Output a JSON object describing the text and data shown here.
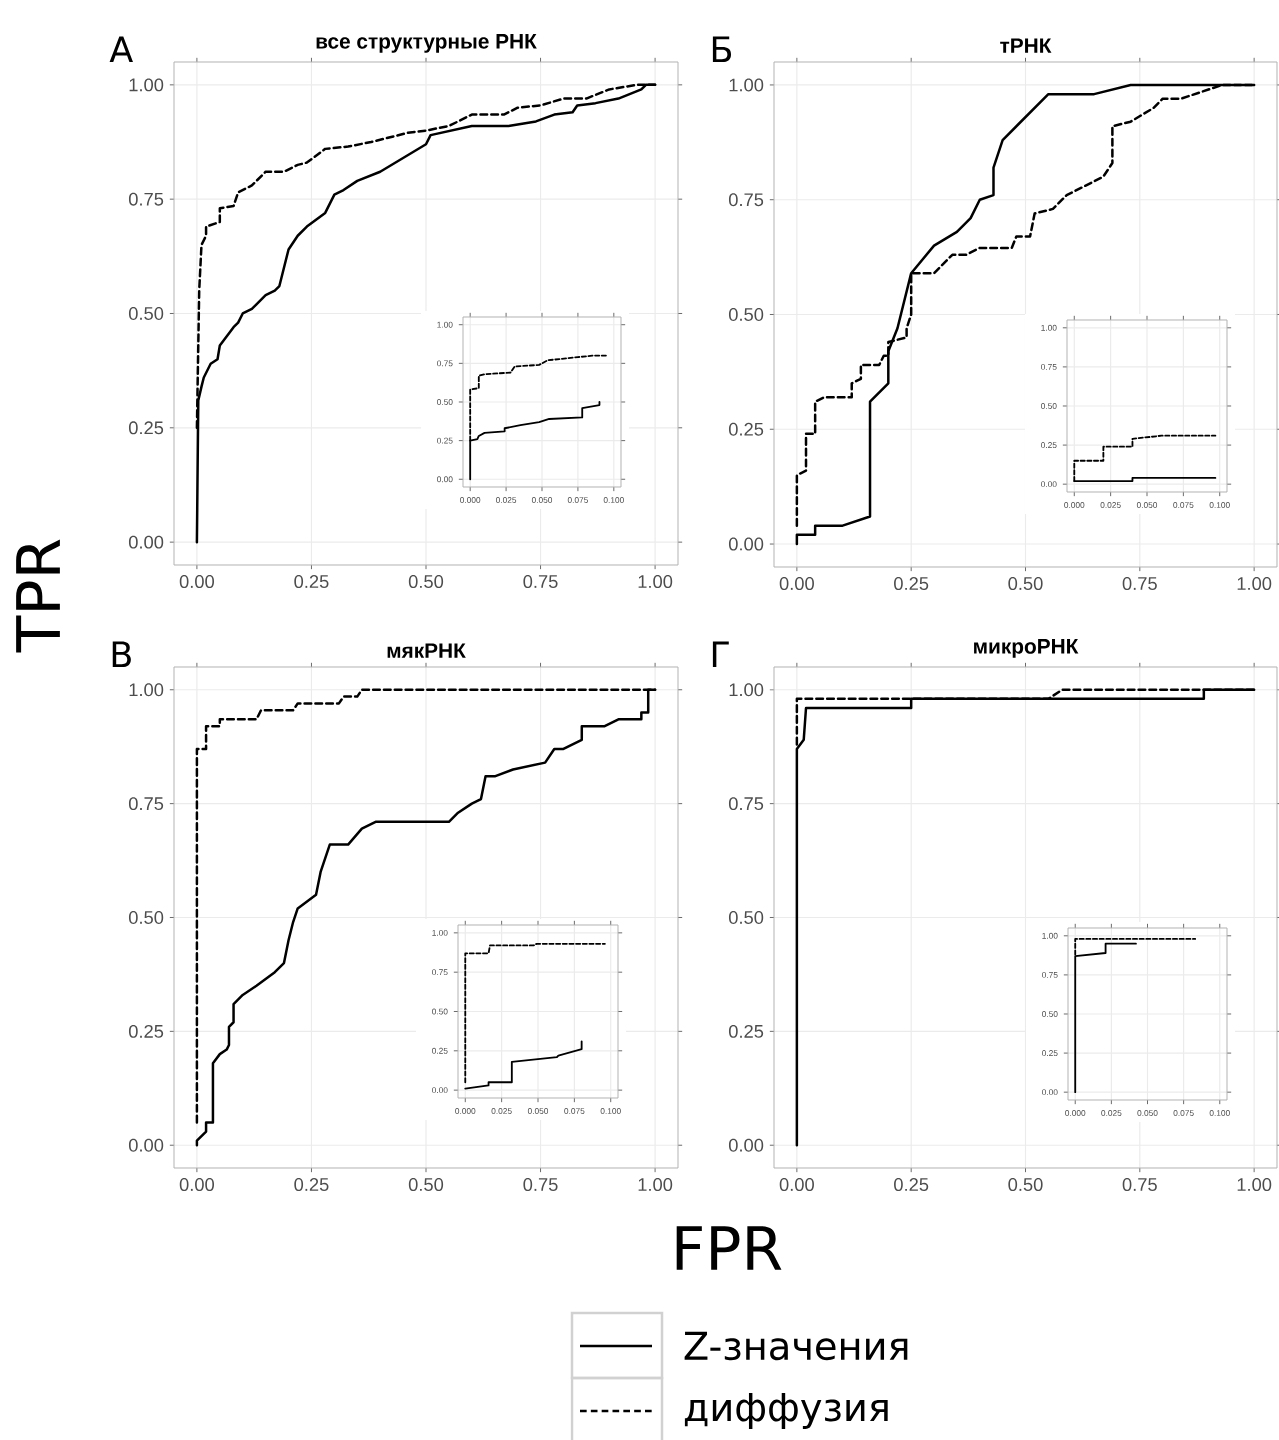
{
  "chart_data": [
    {
      "type": "line",
      "title": "все структурные РНК",
      "xlabel": "FPR",
      "ylabel": "TPR",
      "annotations": [
        "А"
      ],
      "legend": "bottom",
      "grid": true,
      "marker": "none",
      "xlim": [
        -0.05,
        1.05
      ],
      "ylim": [
        -0.05,
        1.05
      ],
      "xticks": [
        {
          "value": 0,
          "label": "0.00"
        },
        {
          "value": 0.25,
          "label": "0.25"
        },
        {
          "value": 0.5,
          "label": "0.50"
        },
        {
          "value": 0.75,
          "label": "0.75"
        },
        {
          "value": 1,
          "label": "1.00"
        }
      ],
      "yticks": [
        {
          "value": 0,
          "label": "0.00"
        },
        {
          "value": 0.25,
          "label": "0.25"
        },
        {
          "value": 0.5,
          "label": "0.50"
        },
        {
          "value": 0.75,
          "label": "0.75"
        },
        {
          "value": 1,
          "label": "1.00"
        }
      ],
      "series": [
        {
          "name": "Z-значения",
          "color": "#000000",
          "line_style": "solid",
          "x": [
            0,
            0.003,
            0.01,
            0.015,
            0.03,
            0.045,
            0.05,
            0.08,
            0.09,
            0.1,
            0.12,
            0.13,
            0.15,
            0.17,
            0.18,
            0.2,
            0.22,
            0.24,
            0.28,
            0.3,
            0.32,
            0.35,
            0.4,
            0.45,
            0.5,
            0.51,
            0.6,
            0.68,
            0.74,
            0.78,
            0.82,
            0.83,
            0.87,
            0.92,
            0.97,
            0.98,
            1
          ],
          "values": [
            0,
            0.31,
            0.34,
            0.36,
            0.39,
            0.4,
            0.43,
            0.47,
            0.48,
            0.5,
            0.51,
            0.52,
            0.54,
            0.55,
            0.56,
            0.64,
            0.67,
            0.69,
            0.72,
            0.76,
            0.77,
            0.79,
            0.81,
            0.84,
            0.87,
            0.89,
            0.91,
            0.91,
            0.92,
            0.935,
            0.94,
            0.955,
            0.96,
            0.97,
            0.99,
            1,
            1
          ]
        },
        {
          "name": "диффузия",
          "color": "#000000",
          "line_style": "dashed",
          "x": [
            0,
            0.005,
            0.01,
            0.02,
            0.02,
            0.05,
            0.05,
            0.08,
            0.09,
            0.12,
            0.15,
            0.19,
            0.22,
            0.24,
            0.28,
            0.33,
            0.38,
            0.4,
            0.46,
            0.5,
            0.55,
            0.6,
            0.67,
            0.7,
            0.75,
            0.8,
            0.85,
            0.9,
            0.96,
            1
          ],
          "values": [
            0.25,
            0.55,
            0.65,
            0.67,
            0.69,
            0.7,
            0.73,
            0.735,
            0.765,
            0.78,
            0.81,
            0.81,
            0.825,
            0.83,
            0.86,
            0.865,
            0.875,
            0.88,
            0.895,
            0.9,
            0.91,
            0.935,
            0.935,
            0.95,
            0.955,
            0.97,
            0.97,
            0.99,
            1,
            1
          ]
        }
      ]
    },
    {
      "type": "line",
      "grid": true,
      "marker": "none",
      "xlim": [
        -0.005,
        0.105
      ],
      "ylim": [
        -0.05,
        1.05
      ],
      "xticks": [
        {
          "value": 0,
          "label": "0.000"
        },
        {
          "value": 0.025,
          "label": "0.025"
        },
        {
          "value": 0.05,
          "label": "0.050"
        },
        {
          "value": 0.075,
          "label": "0.075"
        },
        {
          "value": 0.1,
          "label": "0.100"
        }
      ],
      "yticks": [
        {
          "value": 0,
          "label": "0.00"
        },
        {
          "value": 0.25,
          "label": "0.25"
        },
        {
          "value": 0.5,
          "label": "0.50"
        },
        {
          "value": 0.75,
          "label": "0.75"
        },
        {
          "value": 1,
          "label": "1.00"
        }
      ],
      "series": [
        {
          "color": "#000000",
          "line_style": "solid",
          "x": [
            0,
            0,
            0.005,
            0.006,
            0.01,
            0.024,
            0.024,
            0.035,
            0.048,
            0.055,
            0.078,
            0.078,
            0.09,
            0.09
          ],
          "values": [
            0,
            0.25,
            0.26,
            0.28,
            0.3,
            0.31,
            0.33,
            0.35,
            0.37,
            0.39,
            0.4,
            0.46,
            0.48,
            0.5
          ]
        },
        {
          "color": "#000000",
          "line_style": "dashed",
          "x": [
            0,
            0,
            0.006,
            0.006,
            0.01,
            0.028,
            0.031,
            0.048,
            0.054,
            0.075,
            0.085,
            0.095
          ],
          "values": [
            0.25,
            0.58,
            0.59,
            0.67,
            0.68,
            0.69,
            0.73,
            0.74,
            0.77,
            0.79,
            0.8,
            0.8
          ]
        }
      ]
    },
    {
      "type": "line",
      "title": "тРНК",
      "annotations": [
        "Б"
      ],
      "grid": true,
      "marker": "none",
      "xlim": [
        -0.05,
        1.05
      ],
      "ylim": [
        -0.05,
        1.05
      ],
      "xticks": [
        {
          "value": 0,
          "label": "0.00"
        },
        {
          "value": 0.25,
          "label": "0.25"
        },
        {
          "value": 0.5,
          "label": "0.50"
        },
        {
          "value": 0.75,
          "label": "0.75"
        },
        {
          "value": 1,
          "label": "1.00"
        }
      ],
      "yticks": [
        {
          "value": 0,
          "label": "0.00"
        },
        {
          "value": 0.25,
          "label": "0.25"
        },
        {
          "value": 0.5,
          "label": "0.50"
        },
        {
          "value": 0.75,
          "label": "0.75"
        },
        {
          "value": 1,
          "label": "1.00"
        }
      ],
      "series": [
        {
          "color": "#000000",
          "line_style": "solid",
          "x": [
            0,
            0,
            0.04,
            0.04,
            0.1,
            0.16,
            0.16,
            0.2,
            0.2,
            0.22,
            0.25,
            0.3,
            0.35,
            0.38,
            0.4,
            0.43,
            0.43,
            0.45,
            0.55,
            0.65,
            0.73,
            1
          ],
          "values": [
            0,
            0.02,
            0.02,
            0.04,
            0.04,
            0.06,
            0.31,
            0.35,
            0.42,
            0.47,
            0.59,
            0.65,
            0.68,
            0.71,
            0.75,
            0.76,
            0.82,
            0.88,
            0.98,
            0.98,
            1,
            1
          ]
        },
        {
          "color": "#000000",
          "line_style": "dashed",
          "x": [
            0,
            0,
            0.02,
            0.02,
            0.04,
            0.04,
            0.06,
            0.12,
            0.12,
            0.14,
            0.14,
            0.18,
            0.19,
            0.2,
            0.2,
            0.24,
            0.24,
            0.25,
            0.25,
            0.3,
            0.34,
            0.37,
            0.4,
            0.47,
            0.48,
            0.51,
            0.52,
            0.56,
            0.59,
            0.67,
            0.69,
            0.69,
            0.73,
            0.78,
            0.8,
            0.84,
            0.9,
            0.93,
            1
          ],
          "values": [
            0.04,
            0.15,
            0.16,
            0.24,
            0.24,
            0.31,
            0.32,
            0.32,
            0.35,
            0.36,
            0.39,
            0.39,
            0.41,
            0.41,
            0.44,
            0.45,
            0.47,
            0.5,
            0.59,
            0.59,
            0.63,
            0.63,
            0.645,
            0.645,
            0.67,
            0.67,
            0.72,
            0.73,
            0.76,
            0.8,
            0.83,
            0.91,
            0.92,
            0.95,
            0.97,
            0.97,
            0.99,
            1,
            1
          ]
        }
      ]
    },
    {
      "type": "line",
      "grid": true,
      "marker": "none",
      "xlim": [
        -0.005,
        0.105
      ],
      "ylim": [
        -0.05,
        1.05
      ],
      "xticks": [
        {
          "value": 0,
          "label": "0.000"
        },
        {
          "value": 0.025,
          "label": "0.025"
        },
        {
          "value": 0.05,
          "label": "0.050"
        },
        {
          "value": 0.075,
          "label": "0.075"
        },
        {
          "value": 0.1,
          "label": "0.100"
        }
      ],
      "yticks": [
        {
          "value": 0,
          "label": "0.00"
        },
        {
          "value": 0.25,
          "label": "0.25"
        },
        {
          "value": 0.5,
          "label": "0.50"
        },
        {
          "value": 0.75,
          "label": "0.75"
        },
        {
          "value": 1,
          "label": "1.00"
        }
      ],
      "series": [
        {
          "color": "#000000",
          "line_style": "solid",
          "x": [
            0,
            0.04,
            0.04,
            0.097
          ],
          "values": [
            0.02,
            0.02,
            0.04,
            0.04
          ]
        },
        {
          "color": "#000000",
          "line_style": "dashed",
          "x": [
            0,
            0,
            0.02,
            0.02,
            0.04,
            0.04,
            0.05,
            0.06,
            0.097
          ],
          "values": [
            0.02,
            0.15,
            0.15,
            0.24,
            0.24,
            0.29,
            0.3,
            0.31,
            0.31
          ]
        }
      ]
    },
    {
      "type": "line",
      "title": "мякРНК",
      "annotations": [
        "В"
      ],
      "grid": true,
      "marker": "none",
      "xlim": [
        -0.05,
        1.05
      ],
      "ylim": [
        -0.05,
        1.05
      ],
      "xticks": [
        {
          "value": 0,
          "label": "0.00"
        },
        {
          "value": 0.25,
          "label": "0.25"
        },
        {
          "value": 0.5,
          "label": "0.50"
        },
        {
          "value": 0.75,
          "label": "0.75"
        },
        {
          "value": 1,
          "label": "1.00"
        }
      ],
      "yticks": [
        {
          "value": 0,
          "label": "0.00"
        },
        {
          "value": 0.25,
          "label": "0.25"
        },
        {
          "value": 0.5,
          "label": "0.50"
        },
        {
          "value": 0.75,
          "label": "0.75"
        },
        {
          "value": 1,
          "label": "1.00"
        }
      ],
      "series": [
        {
          "color": "#000000",
          "line_style": "solid",
          "x": [
            0,
            0,
            0.02,
            0.02,
            0.035,
            0.035,
            0.05,
            0.065,
            0.07,
            0.07,
            0.08,
            0.08,
            0.1,
            0.13,
            0.17,
            0.19,
            0.2,
            0.21,
            0.22,
            0.26,
            0.27,
            0.29,
            0.33,
            0.36,
            0.39,
            0.55,
            0.57,
            0.6,
            0.62,
            0.63,
            0.65,
            0.69,
            0.76,
            0.78,
            0.8,
            0.84,
            0.84,
            0.89,
            0.92,
            0.97,
            0.97,
            0.985,
            0.985,
            1
          ],
          "values": [
            0,
            0.01,
            0.03,
            0.05,
            0.05,
            0.18,
            0.2,
            0.21,
            0.22,
            0.26,
            0.27,
            0.31,
            0.33,
            0.35,
            0.38,
            0.4,
            0.45,
            0.49,
            0.52,
            0.55,
            0.6,
            0.66,
            0.66,
            0.695,
            0.71,
            0.71,
            0.73,
            0.75,
            0.76,
            0.81,
            0.81,
            0.825,
            0.84,
            0.87,
            0.87,
            0.89,
            0.92,
            0.92,
            0.935,
            0.935,
            0.95,
            0.95,
            1,
            1
          ]
        },
        {
          "color": "#000000",
          "line_style": "dashed",
          "x": [
            0,
            0,
            0.02,
            0.02,
            0.05,
            0.05,
            0.13,
            0.14,
            0.21,
            0.22,
            0.31,
            0.32,
            0.35,
            0.36,
            1
          ],
          "values": [
            0.05,
            0.87,
            0.87,
            0.92,
            0.92,
            0.935,
            0.935,
            0.955,
            0.955,
            0.97,
            0.97,
            0.985,
            0.985,
            1,
            1
          ]
        }
      ]
    },
    {
      "type": "line",
      "grid": true,
      "marker": "none",
      "xlim": [
        -0.005,
        0.105
      ],
      "ylim": [
        -0.05,
        1.05
      ],
      "xticks": [
        {
          "value": 0,
          "label": "0.000"
        },
        {
          "value": 0.025,
          "label": "0.025"
        },
        {
          "value": 0.05,
          "label": "0.050"
        },
        {
          "value": 0.075,
          "label": "0.075"
        },
        {
          "value": 0.1,
          "label": "0.100"
        }
      ],
      "yticks": [
        {
          "value": 0,
          "label": "0.00"
        },
        {
          "value": 0.25,
          "label": "0.25"
        },
        {
          "value": 0.5,
          "label": "0.50"
        },
        {
          "value": 0.75,
          "label": "0.75"
        },
        {
          "value": 1,
          "label": "1.00"
        }
      ],
      "series": [
        {
          "color": "#000000",
          "line_style": "solid",
          "x": [
            0,
            0.016,
            0.016,
            0.032,
            0.032,
            0.063,
            0.064,
            0.08,
            0.08
          ],
          "values": [
            0.01,
            0.03,
            0.05,
            0.05,
            0.18,
            0.21,
            0.22,
            0.26,
            0.31
          ]
        },
        {
          "color": "#000000",
          "line_style": "dashed",
          "x": [
            0,
            0,
            0.016,
            0.017,
            0.047,
            0.049,
            0.096
          ],
          "values": [
            0.05,
            0.87,
            0.87,
            0.92,
            0.92,
            0.93,
            0.93
          ]
        }
      ]
    },
    {
      "type": "line",
      "title": "микроРНК",
      "annotations": [
        "Г"
      ],
      "grid": true,
      "marker": "none",
      "xlim": [
        -0.05,
        1.05
      ],
      "ylim": [
        -0.05,
        1.05
      ],
      "xticks": [
        {
          "value": 0,
          "label": "0.00"
        },
        {
          "value": 0.25,
          "label": "0.25"
        },
        {
          "value": 0.5,
          "label": "0.50"
        },
        {
          "value": 0.75,
          "label": "0.75"
        },
        {
          "value": 1,
          "label": "1.00"
        }
      ],
      "yticks": [
        {
          "value": 0,
          "label": "0.00"
        },
        {
          "value": 0.25,
          "label": "0.25"
        },
        {
          "value": 0.5,
          "label": "0.50"
        },
        {
          "value": 0.75,
          "label": "0.75"
        },
        {
          "value": 1,
          "label": "1.00"
        }
      ],
      "series": [
        {
          "color": "#000000",
          "line_style": "solid",
          "x": [
            0,
            0,
            0.015,
            0.02,
            0.25,
            0.25,
            0.89,
            0.89,
            1
          ],
          "values": [
            0,
            0.87,
            0.89,
            0.96,
            0.96,
            0.98,
            0.98,
            1,
            1
          ]
        },
        {
          "color": "#000000",
          "line_style": "dashed",
          "x": [
            0,
            0,
            0.25,
            0.55,
            0.58,
            1
          ],
          "values": [
            0.88,
            0.98,
            0.98,
            0.98,
            1,
            1
          ]
        }
      ]
    },
    {
      "type": "line",
      "grid": true,
      "marker": "none",
      "xlim": [
        -0.005,
        0.105
      ],
      "ylim": [
        -0.05,
        1.05
      ],
      "xticks": [
        {
          "value": 0,
          "label": "0.000"
        },
        {
          "value": 0.025,
          "label": "0.025"
        },
        {
          "value": 0.05,
          "label": "0.050"
        },
        {
          "value": 0.075,
          "label": "0.075"
        },
        {
          "value": 0.1,
          "label": "0.100"
        }
      ],
      "yticks": [
        {
          "value": 0,
          "label": "0.00"
        },
        {
          "value": 0.25,
          "label": "0.25"
        },
        {
          "value": 0.5,
          "label": "0.50"
        },
        {
          "value": 0.75,
          "label": "0.75"
        },
        {
          "value": 1,
          "label": "1.00"
        }
      ],
      "series": [
        {
          "color": "#000000",
          "line_style": "solid",
          "x": [
            0,
            0,
            0.021,
            0.021,
            0.042
          ],
          "values": [
            0,
            0.87,
            0.89,
            0.95,
            0.95
          ]
        },
        {
          "color": "#000000",
          "line_style": "dashed",
          "x": [
            0,
            0,
            0.083
          ],
          "values": [
            0.88,
            0.98,
            0.98
          ]
        }
      ]
    }
  ]
}
